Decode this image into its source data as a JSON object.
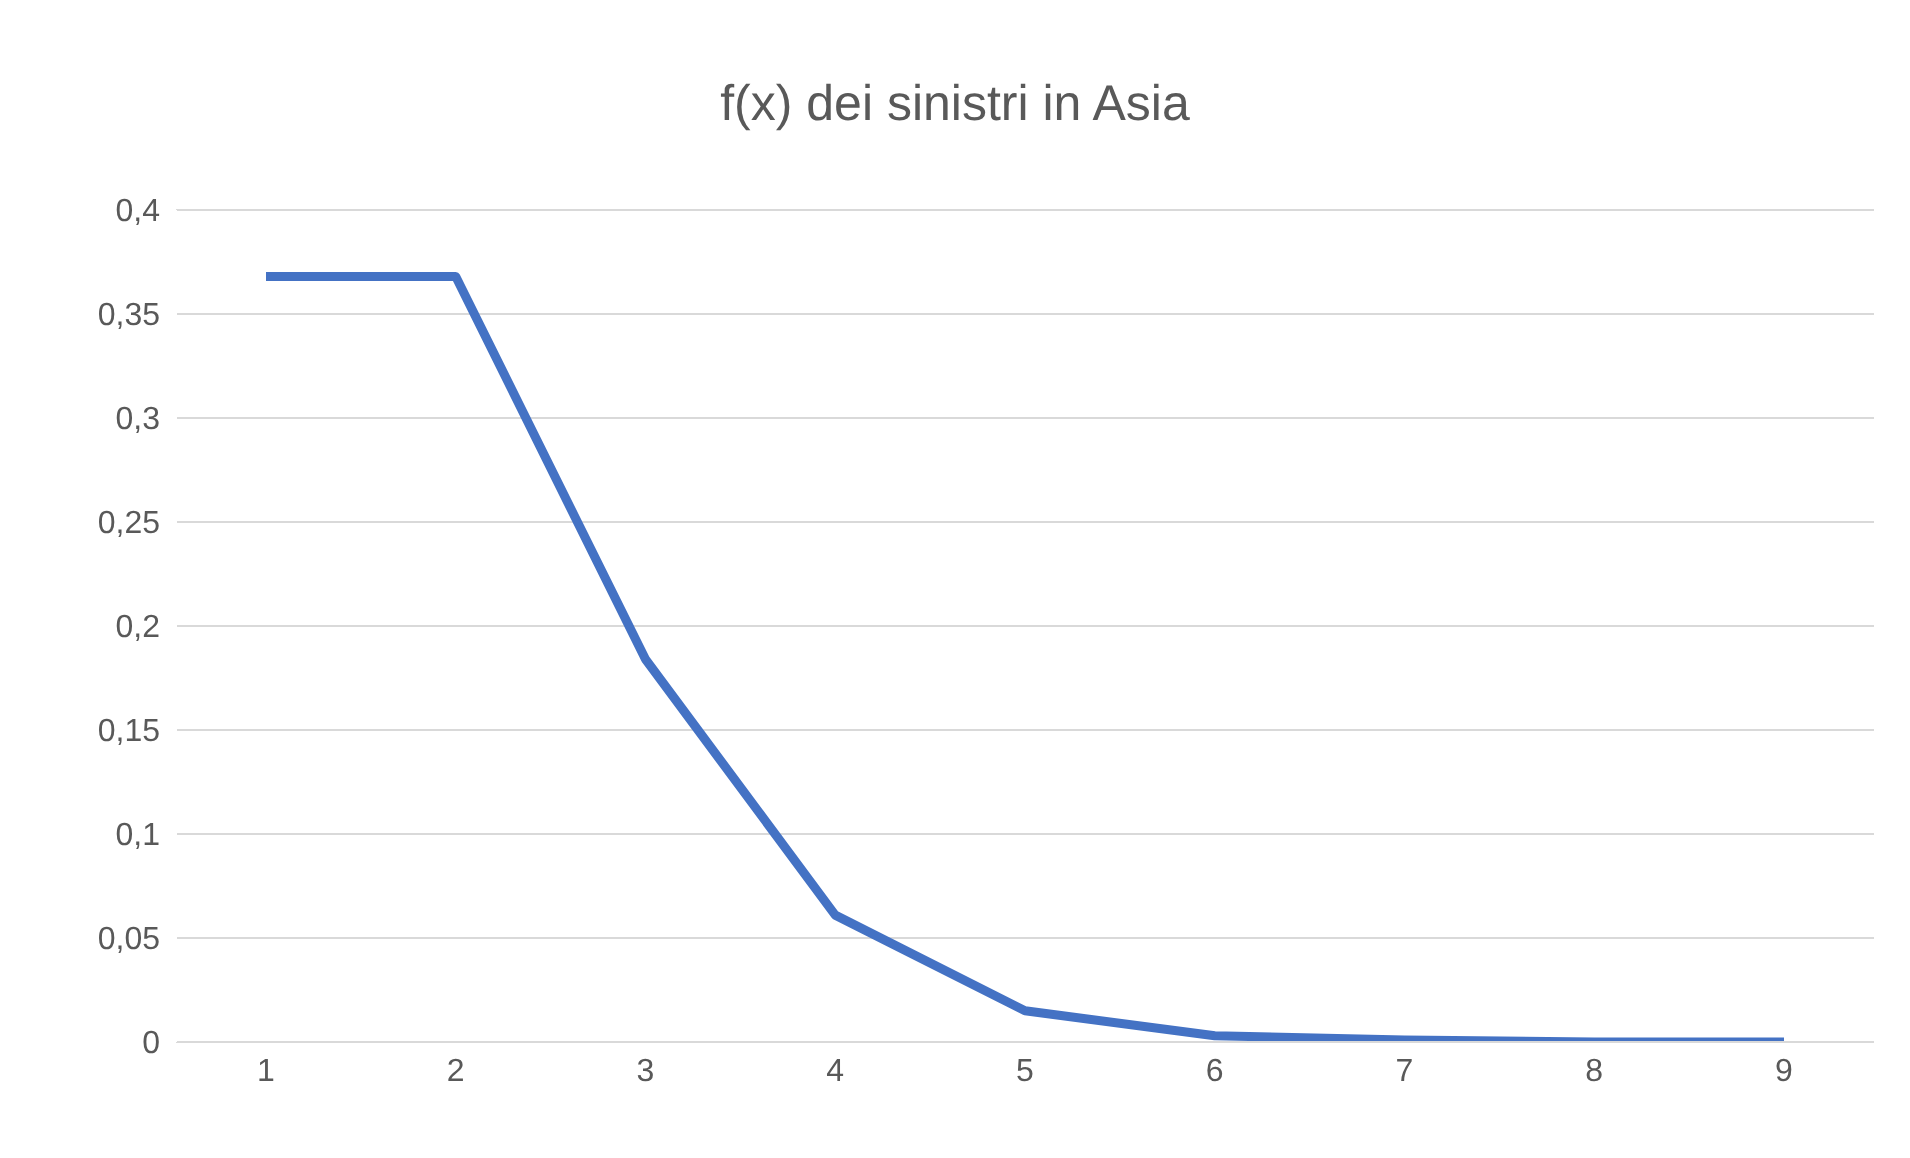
{
  "chart_data": {
    "type": "line",
    "title": "f(x) dei sinistri in Asia",
    "categories": [
      "1",
      "2",
      "3",
      "4",
      "5",
      "6",
      "7",
      "8",
      "9"
    ],
    "series": [
      {
        "color": "#4472c4",
        "values": [
          0.368,
          0.368,
          0.184,
          0.061,
          0.015,
          0.003,
          0.001,
          0,
          0
        ]
      }
    ],
    "ylim": [
      0,
      0.4
    ],
    "yticks": [
      0,
      {
        "value": 0.05,
        "label": "0,05"
      },
      {
        "value": 0.1,
        "label": "0,1"
      },
      {
        "value": 0.15,
        "label": "0,15"
      },
      {
        "value": 0.2,
        "label": "0,2"
      },
      {
        "value": 0.25,
        "label": "0,25"
      },
      {
        "value": 0.3,
        "label": "0,3"
      },
      {
        "value": 0.35,
        "label": "0,35"
      },
      {
        "value": 0.4,
        "label": "0,4"
      }
    ],
    "grid": "y",
    "legend": false,
    "marker": "none",
    "line_style": "solid"
  }
}
